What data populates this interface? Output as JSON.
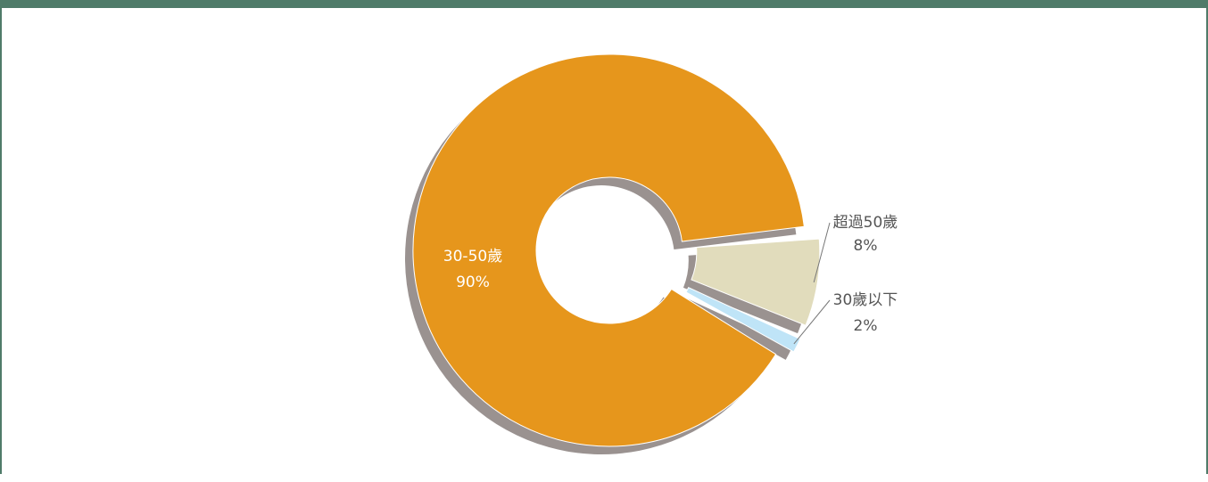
{
  "chart_data": {
    "type": "pie",
    "variant": "donut",
    "title": "",
    "categories": [
      "30-50歲",
      "超過50歲",
      "30歲以下"
    ],
    "values": [
      90,
      8,
      2
    ],
    "value_labels": [
      "90%",
      "8%",
      "2%"
    ],
    "colors": [
      "#e6961c",
      "#e1dcbc",
      "#bfe4f7"
    ],
    "shadow_color": "#9a9290",
    "label_colors": [
      "#ffffff",
      "#555555",
      "#555555"
    ],
    "exploded": [
      false,
      true,
      true
    ],
    "legend": "none"
  }
}
